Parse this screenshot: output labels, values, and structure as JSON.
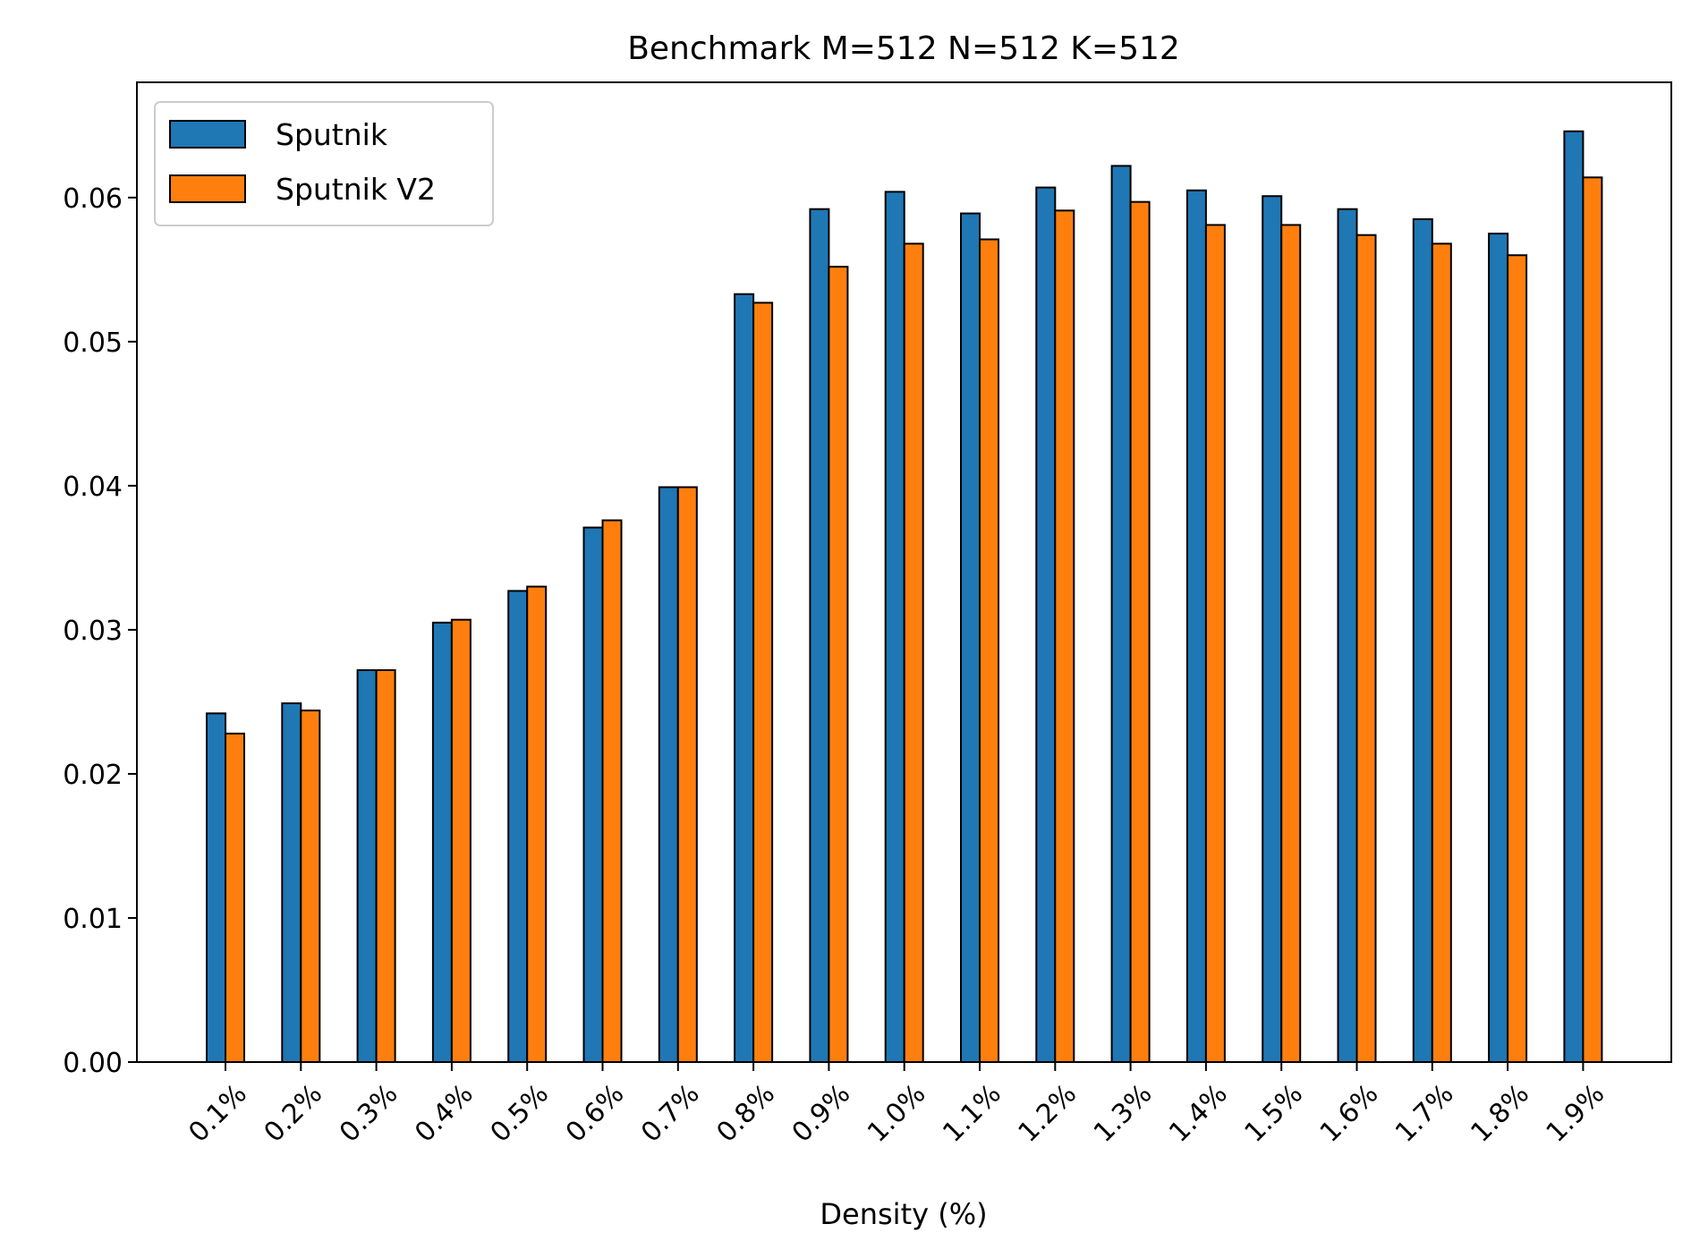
{
  "chart_data": {
    "type": "bar",
    "title": "Benchmark M=512 N=512 K=512",
    "xlabel": "Density (%)",
    "ylabel": "",
    "categories": [
      "0.1%",
      "0.2%",
      "0.3%",
      "0.4%",
      "0.5%",
      "0.6%",
      "0.7%",
      "0.8%",
      "0.9%",
      "1.0%",
      "1.1%",
      "1.2%",
      "1.3%",
      "1.4%",
      "1.5%",
      "1.6%",
      "1.7%",
      "1.8%",
      "1.9%"
    ],
    "series": [
      {
        "name": "Sputnik",
        "color": "#1f77b4",
        "values": [
          0.0242,
          0.0249,
          0.0272,
          0.0305,
          0.0327,
          0.0371,
          0.0399,
          0.0533,
          0.0592,
          0.0604,
          0.0589,
          0.0607,
          0.0622,
          0.0605,
          0.0601,
          0.0592,
          0.0585,
          0.0575,
          0.0646
        ]
      },
      {
        "name": "Sputnik V2",
        "color": "#ff7f0e",
        "values": [
          0.0228,
          0.0244,
          0.0272,
          0.0307,
          0.033,
          0.0376,
          0.0399,
          0.0527,
          0.0552,
          0.0568,
          0.0571,
          0.0591,
          0.0597,
          0.0581,
          0.0581,
          0.0574,
          0.0568,
          0.056,
          0.0614
        ]
      }
    ],
    "ylim": [
      0,
      0.068
    ],
    "yticks": [
      "0.00",
      "0.01",
      "0.02",
      "0.03",
      "0.04",
      "0.05",
      "0.06"
    ],
    "ytick_values": [
      0,
      0.01,
      0.02,
      0.03,
      0.04,
      0.05,
      0.06
    ],
    "grid": false,
    "legend_position": "top-left"
  }
}
